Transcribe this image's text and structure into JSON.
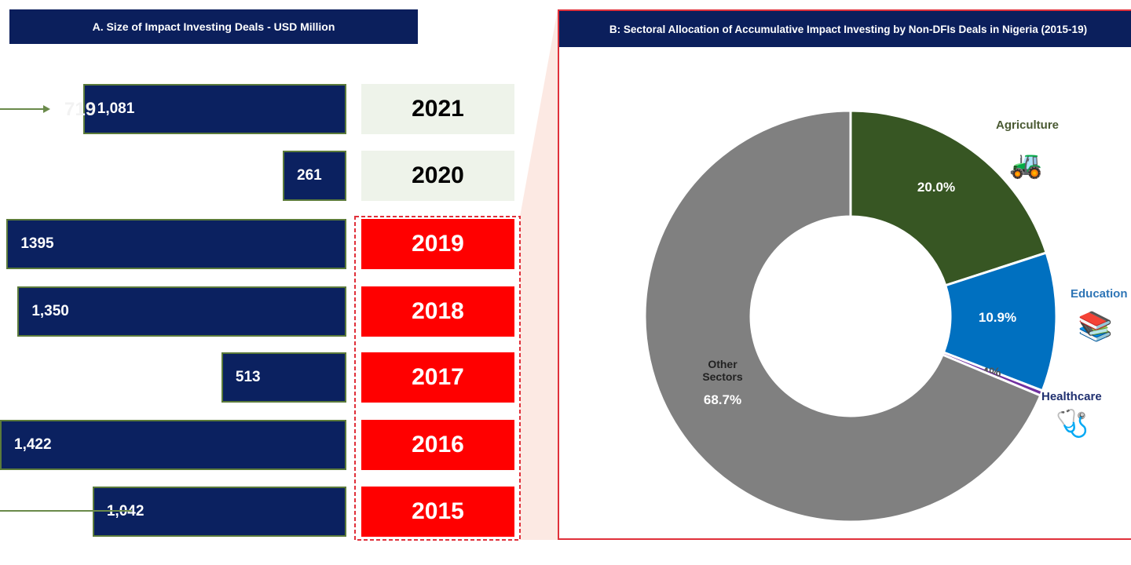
{
  "chart_data": [
    {
      "type": "bar",
      "orientation": "horizontal",
      "title": "A. Size of Impact Investing Deals  - USD Million",
      "categories": [
        "2021",
        "2020",
        "2019",
        "2018",
        "2017",
        "2016",
        "2015"
      ],
      "values": [
        1081,
        261,
        1395,
        1350,
        513,
        1422,
        1042
      ],
      "labels": [
        "1,081",
        "261",
        "1395",
        "1,350",
        "513",
        "1,422",
        "1,042"
      ],
      "annotation": "719",
      "highlighted_years": [
        "2019",
        "2018",
        "2017",
        "2016",
        "2015"
      ],
      "colors": {
        "bar": "#0b2160",
        "highlight": "#ff0000",
        "normal_year_bg": "#eef3ea"
      }
    },
    {
      "type": "pie",
      "style": "donut",
      "title": "B: Sectoral Allocation of Accumulative Impact Investing by Non-DFIs Deals in Nigeria (2015-19)",
      "slices": [
        {
          "name": "Agriculture",
          "value": 20.0,
          "label": "20.0%",
          "color": "#375623"
        },
        {
          "name": "Education",
          "value": 10.9,
          "label": "10.9%",
          "color": "#0070c0"
        },
        {
          "name": "Healthcare",
          "value": 0.4,
          "label": "0.4%",
          "color": "#7030a0"
        },
        {
          "name": "Other Sectors",
          "value": 68.7,
          "label": "68.7%",
          "color": "#808080"
        }
      ]
    }
  ]
}
